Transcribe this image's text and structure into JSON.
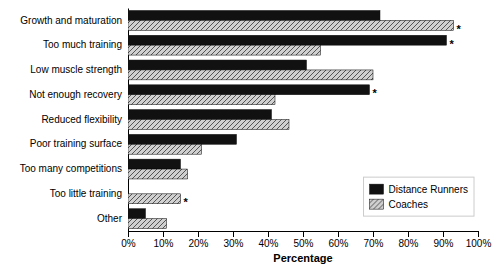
{
  "chart_data": {
    "type": "bar",
    "orientation": "horizontal",
    "categories": [
      "Growth and maturation",
      "Too much training",
      "Low muscle strength",
      "Not enough recovery",
      "Reduced flexibility",
      "Poor training surface",
      "Too many competitions",
      "Too little training",
      "Other"
    ],
    "series": [
      {
        "name": "Distance Runners",
        "color": "#111111",
        "values": [
          72,
          91,
          51,
          69,
          41,
          31,
          15,
          0,
          5
        ]
      },
      {
        "name": "Coaches",
        "color": "#d0d0d0",
        "values": [
          93,
          55,
          70,
          42,
          46,
          21,
          17,
          15,
          11
        ]
      }
    ],
    "xlabel": "Percentage",
    "xlim": [
      0,
      100
    ],
    "xticks": [
      {
        "value": 0,
        "label": "0%"
      },
      {
        "value": 10,
        "label": "10%"
      },
      {
        "value": 20,
        "label": "20%"
      },
      {
        "value": 30,
        "label": "30%"
      },
      {
        "value": 40,
        "label": "40%"
      },
      {
        "value": 50,
        "label": "50%"
      },
      {
        "value": 60,
        "label": "60%"
      },
      {
        "value": 70,
        "label": "70%"
      },
      {
        "value": 80,
        "label": "80%"
      },
      {
        "value": 90,
        "label": "90%"
      },
      {
        "value": 100,
        "label": "100%"
      }
    ],
    "annotations": [
      {
        "text": "*",
        "category": "Growth and maturation",
        "series": "Coaches"
      },
      {
        "text": "*",
        "category": "Too much training",
        "series": "Distance Runners"
      },
      {
        "text": "*",
        "category": "Not enough recovery",
        "series": "Distance Runners"
      },
      {
        "text": "*",
        "category": "Too little training",
        "series": "Coaches"
      }
    ],
    "grid": false,
    "legend": "lower right"
  }
}
